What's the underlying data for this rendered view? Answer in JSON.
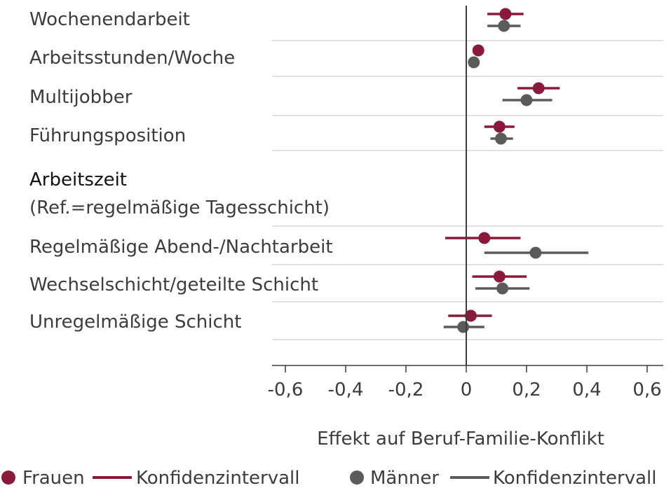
{
  "chart_data": {
    "type": "scatter",
    "subtype": "forest-plot",
    "xlabel": "Effekt auf Beruf-Familie-Konflikt",
    "xlim": [
      -0.65,
      0.65
    ],
    "ticks": [
      -0.6,
      -0.4,
      -0.2,
      0,
      0.2,
      0.4,
      0.6
    ],
    "tick_labels": [
      "-0,6",
      "-0,4",
      "-0,2",
      "0",
      "0,2",
      "0,4",
      "0,6"
    ],
    "reference_line": 0,
    "rows": [
      {
        "label": "Wochenendarbeit",
        "kind": "item"
      },
      {
        "label": "Arbeitsstunden/Woche",
        "kind": "item"
      },
      {
        "label": "Multijobber",
        "kind": "item"
      },
      {
        "label": "Führungsposition",
        "kind": "item"
      },
      {
        "label": "Arbeitszeit",
        "sublabel": "(Ref.=regelmäßige Tagesschicht)",
        "kind": "header"
      },
      {
        "label": "Regelmäßige Abend-/Nachtarbeit",
        "kind": "item"
      },
      {
        "label": "Wechselschicht/geteilte Schicht",
        "kind": "item"
      },
      {
        "label": "Unregelmäßige Schicht",
        "kind": "item"
      }
    ],
    "series": [
      {
        "name": "Frauen",
        "ci_name": "Konfidenzintervall",
        "color": "#8b1a3a",
        "points": [
          {
            "row": 0,
            "estimate": 0.13,
            "ci": [
              0.07,
              0.19
            ]
          },
          {
            "row": 1,
            "estimate": 0.04,
            "ci": null
          },
          {
            "row": 2,
            "estimate": 0.24,
            "ci": [
              0.17,
              0.31
            ]
          },
          {
            "row": 3,
            "estimate": 0.11,
            "ci": [
              0.06,
              0.16
            ]
          },
          {
            "row": 5,
            "estimate": 0.06,
            "ci": [
              -0.07,
              0.18
            ]
          },
          {
            "row": 6,
            "estimate": 0.11,
            "ci": [
              0.02,
              0.2
            ]
          },
          {
            "row": 7,
            "estimate": 0.015,
            "ci": [
              -0.06,
              0.085
            ]
          }
        ]
      },
      {
        "name": "Männer",
        "ci_name": "Konfidenzintervall",
        "color": "#5b5b5b",
        "points": [
          {
            "row": 0,
            "estimate": 0.125,
            "ci": [
              0.07,
              0.18
            ]
          },
          {
            "row": 1,
            "estimate": 0.025,
            "ci": null
          },
          {
            "row": 2,
            "estimate": 0.2,
            "ci": [
              0.12,
              0.285
            ]
          },
          {
            "row": 3,
            "estimate": 0.115,
            "ci": [
              0.08,
              0.155
            ]
          },
          {
            "row": 5,
            "estimate": 0.23,
            "ci": [
              0.06,
              0.405
            ]
          },
          {
            "row": 6,
            "estimate": 0.12,
            "ci": [
              0.03,
              0.21
            ]
          },
          {
            "row": 7,
            "estimate": -0.01,
            "ci": [
              -0.075,
              0.06
            ]
          }
        ]
      }
    ],
    "legend": {
      "position": "bottom",
      "items": [
        "Frauen",
        "Konfidenzintervall",
        "Männer",
        "Konfidenzintervall"
      ]
    }
  }
}
